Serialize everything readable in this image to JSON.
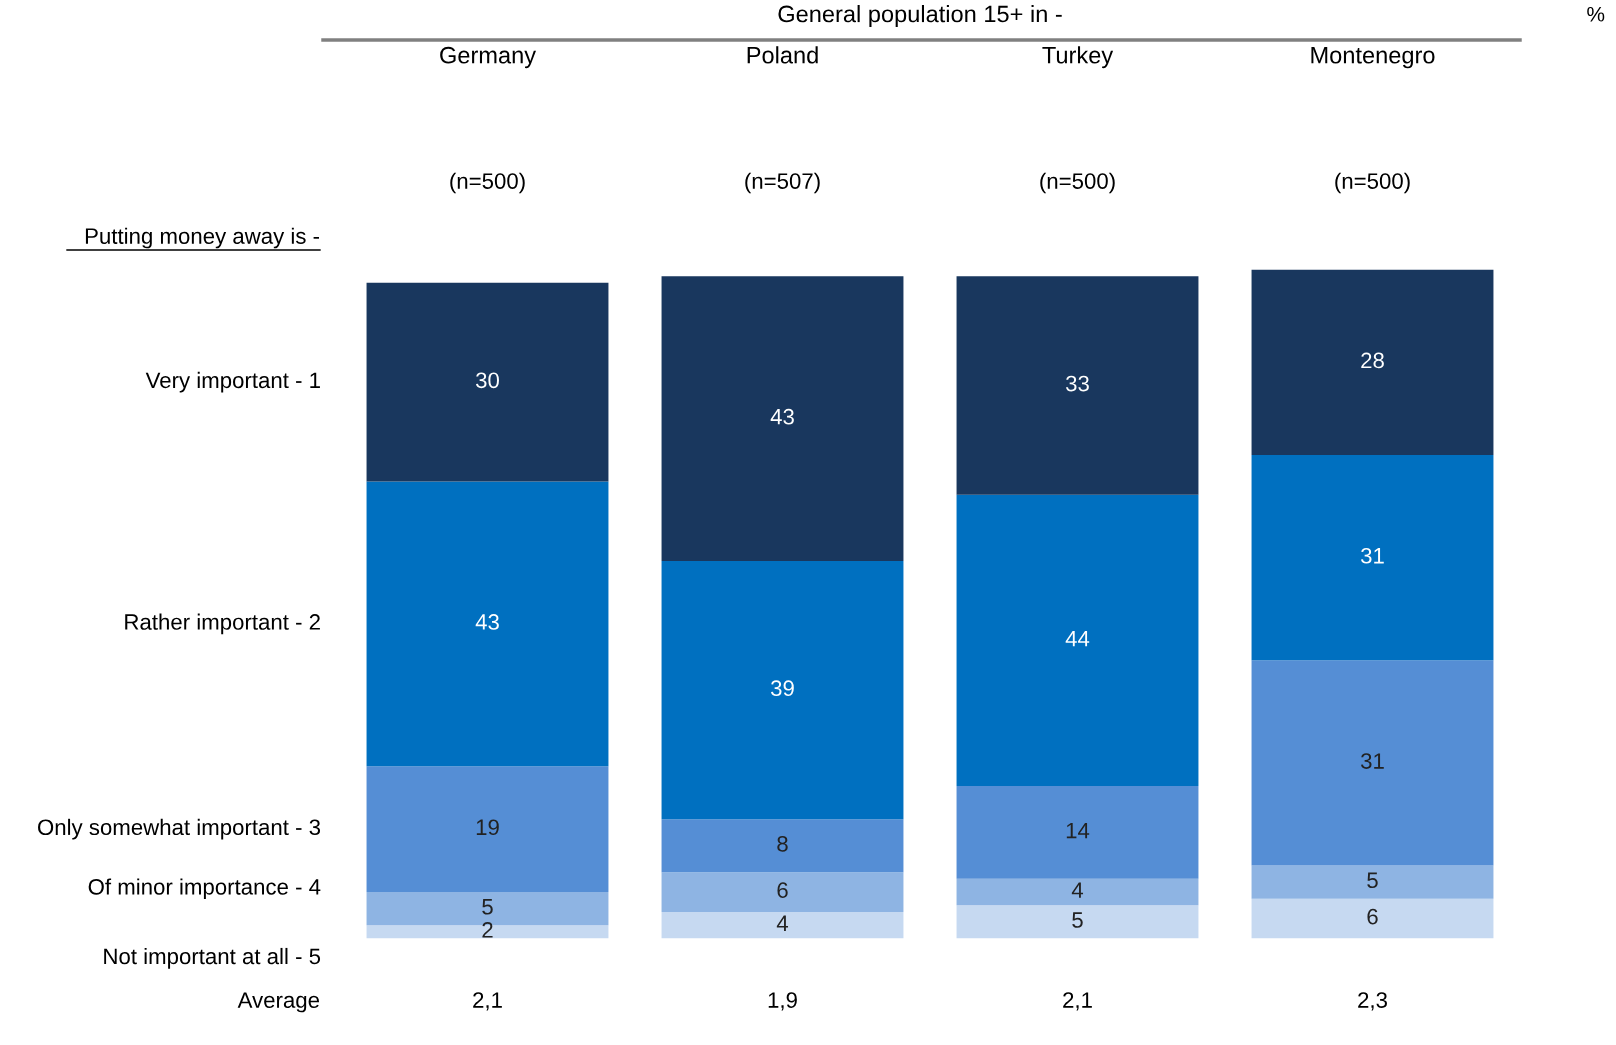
{
  "chart_data": {
    "type": "bar",
    "stacked": true,
    "title": "General population 15+ in -",
    "legend_title": "Putting money away is -",
    "categories": [
      "Germany",
      "Poland",
      "Turkey",
      "Montenegro"
    ],
    "series": [
      {
        "name": "Not important at all - 5",
        "color": "#c6d9f1",
        "values": [
          2,
          4,
          5,
          6
        ]
      },
      {
        "name": "Of minor importance - 4",
        "color": "#8eb4e3",
        "values": [
          5,
          6,
          4,
          5
        ]
      },
      {
        "name": "Only somewhat important - 3",
        "color": "#558ed5",
        "values": [
          19,
          8,
          14,
          31
        ]
      },
      {
        "name": "Rather important - 2",
        "color": "#0070c0",
        "values": [
          43,
          39,
          44,
          31
        ]
      },
      {
        "name": "Very important - 1",
        "color": "#19375e",
        "values": [
          30,
          43,
          33,
          28
        ]
      }
    ],
    "data_labels": true,
    "tick_labels": "x",
    "grid": false,
    "annotations": [
      "%",
      "(n=500)",
      "(n=507)",
      "(n=500)",
      "(n=500)",
      "Average",
      "2,1",
      "1,9",
      "2,1",
      "2,3"
    ]
  }
}
